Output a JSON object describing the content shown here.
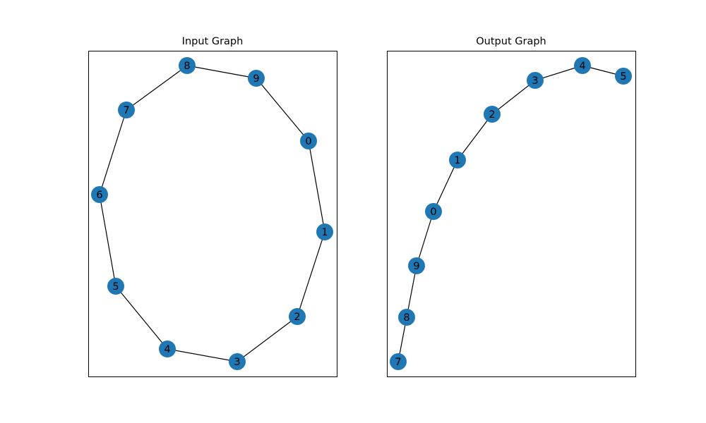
{
  "figure": {
    "node_color": "#1f77b4",
    "edge_color": "#000000"
  },
  "panels": [
    {
      "title": "Input Graph",
      "nodes": [
        "0",
        "1",
        "2",
        "3",
        "4",
        "5",
        "6",
        "7",
        "8",
        "9"
      ],
      "edges": [
        [
          "8",
          "9"
        ],
        [
          "9",
          "0"
        ],
        [
          "0",
          "1"
        ],
        [
          "1",
          "2"
        ],
        [
          "2",
          "3"
        ],
        [
          "3",
          "4"
        ],
        [
          "4",
          "5"
        ],
        [
          "5",
          "6"
        ],
        [
          "6",
          "7"
        ],
        [
          "7",
          "8"
        ]
      ]
    },
    {
      "title": "Output Graph",
      "nodes": [
        "0",
        "1",
        "2",
        "3",
        "4",
        "5",
        "7",
        "8",
        "9"
      ],
      "edges": [
        [
          "4",
          "5"
        ],
        [
          "3",
          "4"
        ],
        [
          "2",
          "3"
        ],
        [
          "1",
          "2"
        ],
        [
          "0",
          "1"
        ],
        [
          "9",
          "0"
        ],
        [
          "8",
          "9"
        ],
        [
          "7",
          "8"
        ]
      ]
    }
  ]
}
